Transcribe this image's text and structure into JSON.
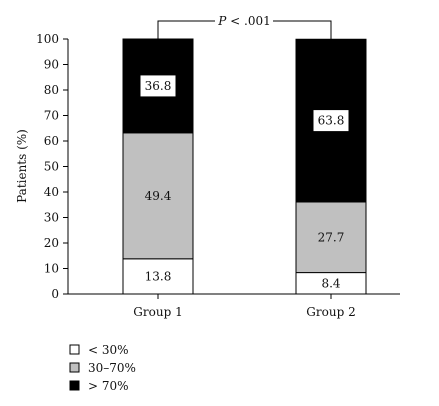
{
  "chart_data": {
    "type": "bar",
    "stacked": true,
    "ylabel": "Patients (%)",
    "xlabel": "",
    "ylim": [
      0,
      100
    ],
    "yticks": [
      0,
      10,
      20,
      30,
      40,
      50,
      60,
      70,
      80,
      90,
      100
    ],
    "categories": [
      "Group 1",
      "Group 2"
    ],
    "series": [
      {
        "name": "< 30%",
        "values": [
          13.8,
          8.4
        ],
        "color": "#ffffff",
        "label_box": false
      },
      {
        "name": "30–70%",
        "values": [
          49.4,
          27.7
        ],
        "color": "#c0c0c0",
        "label_box": false
      },
      {
        "name": "> 70%",
        "values": [
          36.8,
          63.8
        ],
        "color": "#000000",
        "label_box": true
      }
    ],
    "significance": {
      "text_italic": "P",
      "text_rest": " < .001"
    },
    "legend_position": "bottom-left",
    "grid": false
  }
}
